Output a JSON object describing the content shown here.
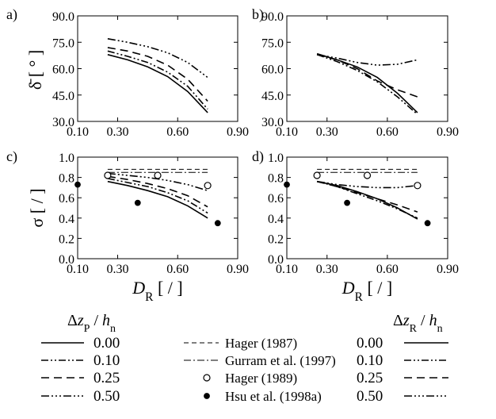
{
  "panel_labels": [
    "a)",
    "b)",
    "c)",
    "d)"
  ],
  "styles": {
    "0.00": "",
    "0.10": "9 3 2 3 2 3",
    "0.25": "10 6",
    "0.50": "10 3 2 3 2 3 2 3",
    "hager1987": "6 4",
    "gurram": "9 3 2 3"
  },
  "chart_data": [
    {
      "type": "line",
      "panel": "a",
      "ylabel": "δ̄ [ ° ]",
      "xlabel": "",
      "xlim": [
        0.1,
        0.9
      ],
      "ylim": [
        30.0,
        90.0
      ],
      "xticks": [
        "0.10",
        "0.30",
        "0.60",
        "0.90"
      ],
      "yticks": [
        "30.0",
        "45.0",
        "60.0",
        "75.0",
        "90.0"
      ],
      "series": [
        {
          "name": "Δz_P / h_n = 0.00",
          "style": "0.00",
          "x": [
            0.25,
            0.35,
            0.45,
            0.55,
            0.65,
            0.75
          ],
          "y": [
            68,
            65,
            61,
            55.5,
            47,
            35
          ]
        },
        {
          "name": "Δz_P / h_n = 0.10",
          "style": "0.10",
          "x": [
            0.25,
            0.35,
            0.45,
            0.55,
            0.65,
            0.75
          ],
          "y": [
            70,
            67,
            63.5,
            58,
            50,
            37
          ]
        },
        {
          "name": "Δz_P / h_n = 0.25",
          "style": "0.25",
          "x": [
            0.25,
            0.35,
            0.45,
            0.55,
            0.65,
            0.75
          ],
          "y": [
            72,
            70,
            67,
            62,
            54,
            41.5
          ]
        },
        {
          "name": "Δz_P / h_n = 0.50",
          "style": "0.50",
          "x": [
            0.25,
            0.35,
            0.45,
            0.55,
            0.65,
            0.75
          ],
          "y": [
            77,
            75,
            72.5,
            69,
            63.5,
            55
          ]
        }
      ]
    },
    {
      "type": "line",
      "panel": "b",
      "ylabel": "",
      "xlabel": "",
      "xlim": [
        0.1,
        0.9
      ],
      "ylim": [
        30.0,
        90.0
      ],
      "xticks": [
        "0.10",
        "0.30",
        "0.60",
        "0.90"
      ],
      "yticks": [
        "30.0",
        "45.0",
        "60.0",
        "75.0",
        "90.0"
      ],
      "series": [
        {
          "name": "Δz_R / h_n = 0.00",
          "style": "0.00",
          "x": [
            0.25,
            0.35,
            0.45,
            0.55,
            0.65,
            0.75
          ],
          "y": [
            68.5,
            65,
            61,
            55,
            46,
            35
          ]
        },
        {
          "name": "Δz_R / h_n = 0.10",
          "style": "0.10",
          "x": [
            0.25,
            0.35,
            0.45,
            0.55,
            0.65,
            0.75
          ],
          "y": [
            68,
            64,
            59,
            52.5,
            44,
            34
          ]
        },
        {
          "name": "Δz_R / h_n = 0.25",
          "style": "0.25",
          "x": [
            0.25,
            0.35,
            0.45,
            0.55,
            0.65,
            0.75
          ],
          "y": [
            68,
            65,
            60,
            53,
            48,
            44
          ]
        },
        {
          "name": "Δz_R / h_n = 0.50",
          "style": "0.50",
          "x": [
            0.25,
            0.35,
            0.45,
            0.55,
            0.65,
            0.75
          ],
          "y": [
            68,
            66,
            63.5,
            62,
            62.5,
            65
          ]
        }
      ]
    },
    {
      "type": "line",
      "panel": "c",
      "ylabel": "σ [ / ]",
      "xlabel": "D_R [ / ]",
      "xlim": [
        0.1,
        0.9
      ],
      "ylim": [
        0.0,
        1.0
      ],
      "xticks": [
        "0.10",
        "0.30",
        "0.60",
        "0.90"
      ],
      "yticks": [
        "0.0",
        "0.2",
        "0.4",
        "0.6",
        "0.8",
        "1.0"
      ],
      "series": [
        {
          "name": "Δz_P / h_n = 0.00",
          "style": "0.00",
          "x": [
            0.25,
            0.35,
            0.45,
            0.55,
            0.65,
            0.75
          ],
          "y": [
            0.76,
            0.72,
            0.67,
            0.61,
            0.52,
            0.4
          ]
        },
        {
          "name": "Δz_P / h_n = 0.10",
          "style": "0.10",
          "x": [
            0.25,
            0.35,
            0.45,
            0.55,
            0.65,
            0.75
          ],
          "y": [
            0.79,
            0.75,
            0.71,
            0.65,
            0.57,
            0.45
          ]
        },
        {
          "name": "Δz_P / h_n = 0.25",
          "style": "0.25",
          "x": [
            0.25,
            0.35,
            0.45,
            0.55,
            0.65,
            0.75
          ],
          "y": [
            0.81,
            0.78,
            0.74,
            0.69,
            0.62,
            0.51
          ]
        },
        {
          "name": "Δz_P / h_n = 0.50",
          "style": "0.50",
          "x": [
            0.25,
            0.35,
            0.45,
            0.55,
            0.65,
            0.75
          ],
          "y": [
            0.84,
            0.82,
            0.8,
            0.77,
            0.73,
            0.67
          ]
        },
        {
          "name": "Hager (1987)",
          "style": "hager1987",
          "x": [
            0.25,
            0.75
          ],
          "y": [
            0.88,
            0.88
          ]
        },
        {
          "name": "Gurram et al. (1997)",
          "style": "gurram",
          "x": [
            0.25,
            0.75
          ],
          "y": [
            0.85,
            0.85
          ]
        }
      ],
      "points": [
        {
          "name": "Hager (1989)",
          "marker": "open",
          "x": [
            0.25,
            0.5,
            0.75
          ],
          "y": [
            0.82,
            0.82,
            0.72
          ]
        },
        {
          "name": "Hsu et al. (1998a)",
          "marker": "filled",
          "x": [
            0.1,
            0.4,
            0.8
          ],
          "y": [
            0.73,
            0.55,
            0.35
          ]
        }
      ]
    },
    {
      "type": "line",
      "panel": "d",
      "ylabel": "",
      "xlabel": "D_R [ / ]",
      "xlim": [
        0.1,
        0.9
      ],
      "ylim": [
        0.0,
        1.0
      ],
      "xticks": [
        "0.10",
        "0.30",
        "0.60",
        "0.90"
      ],
      "yticks": [
        "0.0",
        "0.2",
        "0.4",
        "0.6",
        "0.8",
        "1.0"
      ],
      "series": [
        {
          "name": "Δz_R / h_n = 0.00",
          "style": "0.00",
          "x": [
            0.25,
            0.35,
            0.45,
            0.55,
            0.65,
            0.75
          ],
          "y": [
            0.76,
            0.72,
            0.66,
            0.59,
            0.5,
            0.39
          ]
        },
        {
          "name": "Δz_R / h_n = 0.10",
          "style": "0.10",
          "x": [
            0.25,
            0.35,
            0.45,
            0.55,
            0.65,
            0.75
          ],
          "y": [
            0.76,
            0.71,
            0.64,
            0.57,
            0.49,
            0.4
          ]
        },
        {
          "name": "Δz_R / h_n = 0.25",
          "style": "0.25",
          "x": [
            0.25,
            0.35,
            0.45,
            0.55,
            0.65,
            0.75
          ],
          "y": [
            0.76,
            0.71,
            0.65,
            0.59,
            0.53,
            0.46
          ]
        },
        {
          "name": "Δz_R / h_n = 0.50",
          "style": "0.50",
          "x": [
            0.25,
            0.35,
            0.45,
            0.55,
            0.65,
            0.75
          ],
          "y": [
            0.76,
            0.73,
            0.71,
            0.7,
            0.7,
            0.72
          ]
        },
        {
          "name": "Hager (1987)",
          "style": "hager1987",
          "x": [
            0.25,
            0.75
          ],
          "y": [
            0.88,
            0.88
          ]
        },
        {
          "name": "Gurram et al. (1997)",
          "style": "gurram",
          "x": [
            0.25,
            0.75
          ],
          "y": [
            0.85,
            0.85
          ]
        }
      ],
      "points": [
        {
          "name": "Hager (1989)",
          "marker": "open",
          "x": [
            0.25,
            0.5,
            0.75
          ],
          "y": [
            0.82,
            0.82,
            0.72
          ]
        },
        {
          "name": "Hsu et al. (1998a)",
          "marker": "filled",
          "x": [
            0.1,
            0.4,
            0.8
          ],
          "y": [
            0.73,
            0.55,
            0.35
          ]
        }
      ]
    }
  ],
  "legend": {
    "left_title": "Δz_P / h_n",
    "right_title": "Δz_R / h_n",
    "left_items": [
      {
        "label": "0.00",
        "style": "0.00"
      },
      {
        "label": "0.10",
        "style": "0.10"
      },
      {
        "label": "0.25",
        "style": "0.25"
      },
      {
        "label": "0.50",
        "style": "0.50"
      }
    ],
    "right_items": [
      {
        "label": "0.00",
        "style": "0.00"
      },
      {
        "label": "0.10",
        "style": "0.10"
      },
      {
        "label": "0.25",
        "style": "0.25"
      },
      {
        "label": "0.50",
        "style": "0.50"
      }
    ],
    "middle_items": [
      {
        "label": "Hager (1987)",
        "kind": "line",
        "style": "hager1987"
      },
      {
        "label": "Gurram et al. (1997)",
        "kind": "line",
        "style": "gurram"
      },
      {
        "label": "Hager (1989)",
        "kind": "open"
      },
      {
        "label": "Hsu et al. (1998a)",
        "kind": "filled"
      }
    ]
  }
}
